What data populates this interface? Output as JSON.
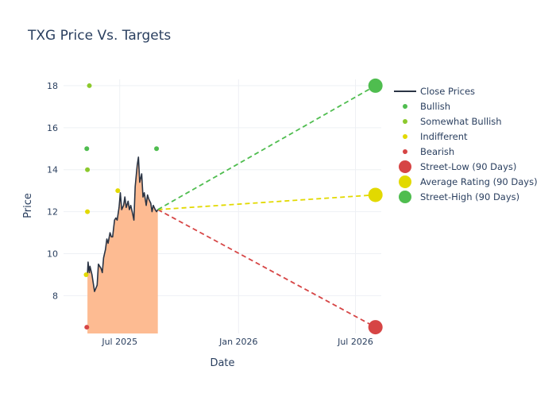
{
  "chart_data": {
    "type": "line",
    "title": "TXG Price Vs. Targets",
    "xlabel": "Date",
    "ylabel": "Price",
    "x_range": [
      "2025-04-05",
      "2026-08-10"
    ],
    "ylim": [
      6.2,
      18.3
    ],
    "y_ticks": [
      8,
      10,
      12,
      14,
      16,
      18
    ],
    "x_ticks": [
      {
        "date": "2025-07-01",
        "label": "Jul 2025"
      },
      {
        "date": "2026-01-01",
        "label": "Jan 2026"
      },
      {
        "date": "2026-07-01",
        "label": "Jul 2026"
      }
    ],
    "grid": true,
    "legend_position": "right",
    "series": [
      {
        "name": "Close Prices",
        "kind": "line-area",
        "color": "#2a3444",
        "fill_color": "#fdbb92",
        "x": [
          "2025-05-12",
          "2025-05-13",
          "2025-05-14",
          "2025-05-15",
          "2025-05-16",
          "2025-05-19",
          "2025-05-21",
          "2025-05-23",
          "2025-05-27",
          "2025-05-29",
          "2025-06-02",
          "2025-06-04",
          "2025-06-06",
          "2025-06-09",
          "2025-06-11",
          "2025-06-13",
          "2025-06-16",
          "2025-06-18",
          "2025-06-20",
          "2025-06-23",
          "2025-06-25",
          "2025-06-27",
          "2025-06-30",
          "2025-07-02",
          "2025-07-04",
          "2025-07-07",
          "2025-07-09",
          "2025-07-11",
          "2025-07-14",
          "2025-07-16",
          "2025-07-18",
          "2025-07-21",
          "2025-07-23",
          "2025-07-25",
          "2025-07-28",
          "2025-07-30",
          "2025-08-01",
          "2025-08-04",
          "2025-08-06",
          "2025-08-08",
          "2025-08-11",
          "2025-08-13",
          "2025-08-15",
          "2025-08-18",
          "2025-08-19",
          "2025-08-20",
          "2025-08-22",
          "2025-08-25",
          "2025-08-27",
          "2025-08-29"
        ],
        "y": [
          9.0,
          9.6,
          9.3,
          9.1,
          9.4,
          9.0,
          8.6,
          8.2,
          8.5,
          9.5,
          9.3,
          9.1,
          9.8,
          10.2,
          10.7,
          10.5,
          11.0,
          10.8,
          10.8,
          11.6,
          11.7,
          11.6,
          12.2,
          12.9,
          12.1,
          12.3,
          12.7,
          12.2,
          12.5,
          12.1,
          12.3,
          11.9,
          11.6,
          13.2,
          14.2,
          14.6,
          13.4,
          13.8,
          12.7,
          12.9,
          12.3,
          12.8,
          12.6,
          12.4,
          12.2,
          12.0,
          12.3,
          12.1,
          12.0,
          12.1
        ]
      },
      {
        "name": "Bullish",
        "kind": "markers",
        "color": "#4fbd4f",
        "points": [
          {
            "x": "2025-05-11",
            "y": 15
          },
          {
            "x": "2025-08-27",
            "y": 15
          }
        ]
      },
      {
        "name": "Somewhat Bullish",
        "kind": "markers",
        "color": "#8cc92d",
        "points": [
          {
            "x": "2025-05-15",
            "y": 18
          },
          {
            "x": "2025-05-12",
            "y": 14
          }
        ]
      },
      {
        "name": "Indifferent",
        "kind": "markers",
        "color": "#e2d900",
        "points": [
          {
            "x": "2025-05-10",
            "y": 9
          },
          {
            "x": "2025-05-12",
            "y": 12
          },
          {
            "x": "2025-06-28",
            "y": 13
          }
        ]
      },
      {
        "name": "Bearish",
        "kind": "markers",
        "color": "#d64545",
        "points": [
          {
            "x": "2025-05-11",
            "y": 6.5
          }
        ]
      },
      {
        "name": "Street-Low (90 Days)",
        "kind": "target",
        "color": "#d64545",
        "from": {
          "x": "2025-08-29",
          "y": 12.1
        },
        "to": {
          "x": "2026-08-01",
          "y": 6.5
        }
      },
      {
        "name": "Average Rating (90 Days)",
        "kind": "target",
        "color": "#e2d900",
        "from": {
          "x": "2025-08-29",
          "y": 12.1
        },
        "to": {
          "x": "2026-08-01",
          "y": 12.8
        }
      },
      {
        "name": "Street-High (90 Days)",
        "kind": "target",
        "color": "#4fbd4f",
        "from": {
          "x": "2025-08-29",
          "y": 12.1
        },
        "to": {
          "x": "2026-08-01",
          "y": 18
        }
      }
    ],
    "legend": [
      {
        "label": "Close Prices",
        "symbol": "line",
        "color": "#2a3444"
      },
      {
        "label": "Bullish",
        "symbol": "dot",
        "color": "#4fbd4f"
      },
      {
        "label": "Somewhat Bullish",
        "symbol": "dot",
        "color": "#8cc92d"
      },
      {
        "label": "Indifferent",
        "symbol": "dot",
        "color": "#e2d900"
      },
      {
        "label": "Bearish",
        "symbol": "dot",
        "color": "#d64545"
      },
      {
        "label": "Street-Low (90 Days)",
        "symbol": "big-dot",
        "color": "#d64545"
      },
      {
        "label": "Average Rating (90 Days)",
        "symbol": "big-dot",
        "color": "#e2d900"
      },
      {
        "label": "Street-High (90 Days)",
        "symbol": "big-dot",
        "color": "#4fbd4f"
      }
    ]
  }
}
